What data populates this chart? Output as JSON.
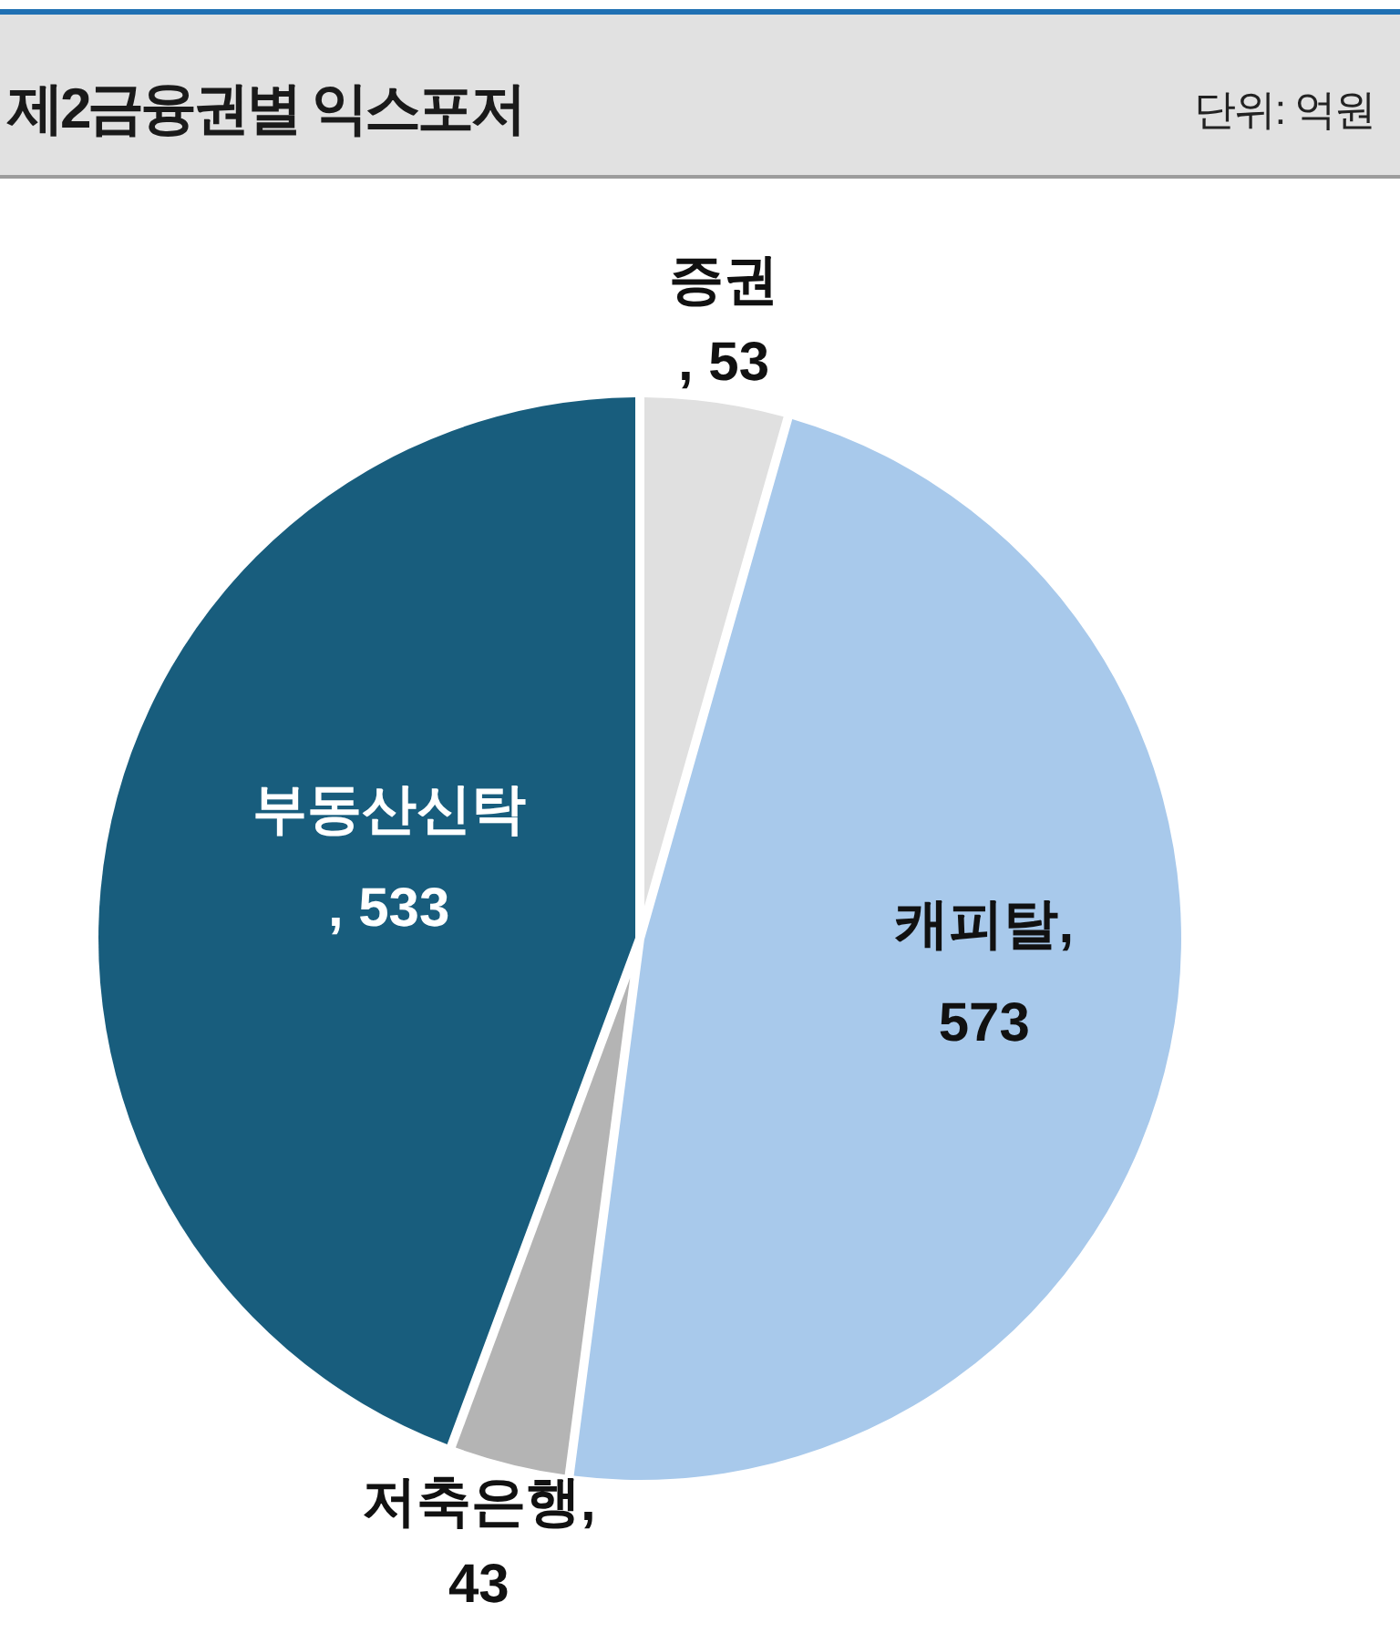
{
  "chart_data": {
    "type": "pie",
    "title": "제2금융권별 익스포저",
    "annotations": [
      "단위: 억원"
    ],
    "categories": [
      "증권",
      "캐피탈",
      "저축은행",
      "부동산신탁"
    ],
    "values": [
      53,
      573,
      43,
      533
    ],
    "colors": [
      "#e0e0e0",
      "#a8c9eb",
      "#b4b4b4",
      "#185d7d"
    ],
    "value_labels": [
      ", 53",
      ", 573",
      ", 43",
      ", 533"
    ]
  }
}
